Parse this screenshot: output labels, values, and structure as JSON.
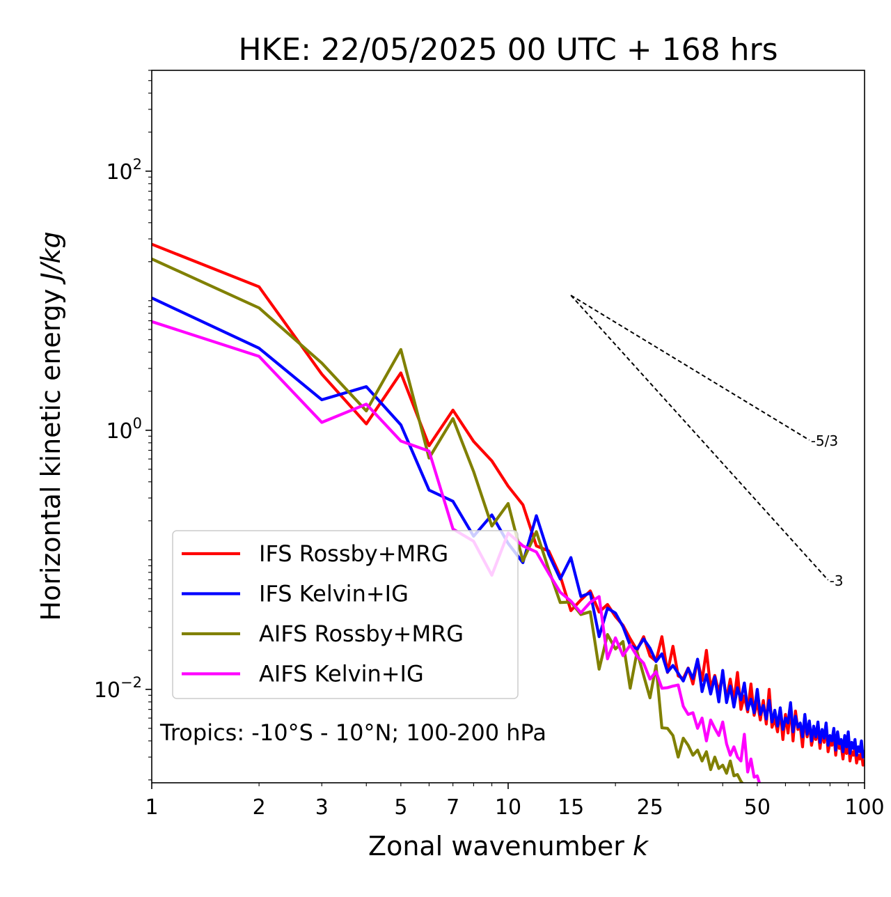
{
  "chart_data": {
    "type": "line",
    "title": "HKE: 22/05/2025 00 UTC + 168 hrs",
    "xlabel_text": "Zonal wavenumber ",
    "xlabel_var": "k",
    "ylabel_text": "Horizontal kinetic energy ",
    "ylabel_unit": "J/kg",
    "xscale": "log",
    "yscale": "log",
    "xlim": [
      1,
      100
    ],
    "ylim": [
      0.0019,
      600
    ],
    "grid": false,
    "legend_position": "lower-left",
    "xticks": [
      1,
      2,
      3,
      5,
      7,
      10,
      15,
      25,
      50,
      100
    ],
    "xtick_labels": [
      "1",
      "2",
      "3",
      "5",
      "7",
      "10",
      "15",
      "25",
      "50",
      "100"
    ],
    "yticks": [
      {
        "value": 100,
        "base": "10",
        "exp": "2"
      },
      {
        "value": 1,
        "base": "10",
        "exp": "0"
      },
      {
        "value": 0.01,
        "base": "10",
        "exp": "−2"
      }
    ],
    "annotation": "Tropics: -10°S - 10°N; 100-200 hPa",
    "reference_slopes": [
      {
        "label": "-5/3",
        "x_start": 15,
        "y_start": 11,
        "x_end": 70,
        "y_end": 0.84
      },
      {
        "label": "-3",
        "x_start": 15,
        "y_start": 11,
        "x_end": 79,
        "y_end": 0.0698
      }
    ],
    "series": [
      {
        "name": "IFS Rossby+MRG",
        "color": "#ff0000",
        "x": [
          1,
          2,
          3,
          4,
          5,
          6,
          7,
          8,
          9,
          10,
          11,
          12,
          13,
          14,
          15,
          16,
          17,
          18,
          19,
          20,
          21,
          22,
          23,
          24,
          25,
          26,
          27,
          28,
          29,
          30,
          31,
          32,
          33,
          34,
          35,
          36,
          37,
          38,
          39,
          40,
          41,
          42,
          43,
          44,
          45,
          46,
          47,
          48,
          49,
          50,
          51,
          52,
          53,
          54,
          55,
          56,
          57,
          58,
          59,
          60,
          61,
          62,
          63,
          64,
          65,
          66,
          67,
          68,
          69,
          70,
          71,
          72,
          73,
          74,
          75,
          76,
          77,
          78,
          79,
          80,
          81,
          82,
          83,
          84,
          85,
          86,
          87,
          88,
          89,
          90,
          91,
          92,
          93,
          94,
          95,
          96,
          97,
          98,
          99,
          100
        ],
        "y": [
          27.3,
          12.8,
          2.71,
          1.12,
          2.77,
          0.76,
          1.43,
          0.82,
          0.58,
          0.37,
          0.266,
          0.128,
          0.117,
          0.075,
          0.0405,
          0.049,
          0.0575,
          0.0395,
          0.0452,
          0.0365,
          0.0312,
          0.0246,
          0.0201,
          0.0255,
          0.0181,
          0.0165,
          0.0255,
          0.0135,
          0.0215,
          0.0127,
          0.0121,
          0.0146,
          0.011,
          0.0169,
          0.0117,
          0.02,
          0.0102,
          0.0128,
          0.0095,
          0.0131,
          0.0084,
          0.012,
          0.0081,
          0.0135,
          0.007,
          0.0089,
          0.0067,
          0.011,
          0.0063,
          0.008,
          0.0058,
          0.0082,
          0.0054,
          0.01,
          0.0051,
          0.0059,
          0.0047,
          0.0069,
          0.0041,
          0.0064,
          0.0046,
          0.0075,
          0.004,
          0.0068,
          0.0049,
          0.0052,
          0.0036,
          0.0062,
          0.0043,
          0.0055,
          0.0037,
          0.0045,
          0.0041,
          0.005,
          0.0035,
          0.0048,
          0.0039,
          0.0054,
          0.0033,
          0.0039,
          0.0037,
          0.0046,
          0.0031,
          0.0043,
          0.0035,
          0.0037,
          0.0029,
          0.0039,
          0.0032,
          0.0044,
          0.0028,
          0.0033,
          0.0031,
          0.0035,
          0.0027,
          0.0031,
          0.0029,
          0.0033,
          0.0026,
          0.00285
        ]
      },
      {
        "name": "IFS Kelvin+IG",
        "color": "#0000ff",
        "x": [
          1,
          2,
          3,
          4,
          5,
          6,
          7,
          8,
          9,
          10,
          11,
          12,
          13,
          14,
          15,
          16,
          17,
          18,
          19,
          20,
          21,
          22,
          23,
          24,
          25,
          26,
          27,
          28,
          29,
          30,
          31,
          32,
          33,
          34,
          35,
          36,
          37,
          38,
          39,
          40,
          41,
          42,
          43,
          44,
          45,
          46,
          47,
          48,
          49,
          50,
          51,
          52,
          53,
          54,
          55,
          56,
          57,
          58,
          59,
          60,
          61,
          62,
          63,
          64,
          65,
          66,
          67,
          68,
          69,
          70,
          71,
          72,
          73,
          74,
          75,
          76,
          77,
          78,
          79,
          80,
          81,
          82,
          83,
          84,
          85,
          86,
          87,
          88,
          89,
          90,
          91,
          92,
          93,
          94,
          95,
          96,
          97,
          98,
          99,
          100
        ],
        "y": [
          10.5,
          4.3,
          1.72,
          2.17,
          1.1,
          0.345,
          0.283,
          0.152,
          0.222,
          0.134,
          0.095,
          0.219,
          0.11,
          0.071,
          0.104,
          0.052,
          0.0555,
          0.0255,
          0.0423,
          0.0388,
          0.0305,
          0.0218,
          0.0205,
          0.0245,
          0.0208,
          0.0164,
          0.0188,
          0.0136,
          0.0153,
          0.0133,
          0.0116,
          0.0145,
          0.0121,
          0.0171,
          0.0096,
          0.013,
          0.0092,
          0.0125,
          0.008,
          0.014,
          0.0079,
          0.0106,
          0.0073,
          0.0103,
          0.0083,
          0.0112,
          0.007,
          0.0084,
          0.0066,
          0.01,
          0.0064,
          0.0075,
          0.0059,
          0.0082,
          0.0056,
          0.0069,
          0.0052,
          0.0072,
          0.0049,
          0.006,
          0.0055,
          0.0079,
          0.0047,
          0.0062,
          0.0051,
          0.0055,
          0.0043,
          0.0064,
          0.0045,
          0.0057,
          0.004,
          0.0052,
          0.0043,
          0.0056,
          0.0039,
          0.0049,
          0.0042,
          0.0055,
          0.0037,
          0.0044,
          0.004,
          0.005,
          0.0034,
          0.0047,
          0.0038,
          0.0041,
          0.0033,
          0.0044,
          0.0036,
          0.0047,
          0.0032,
          0.0039,
          0.0035,
          0.0041,
          0.0031,
          0.0036,
          0.0033,
          0.004,
          0.003,
          0.0034
        ]
      },
      {
        "name": "AIFS Rossby+MRG",
        "color": "#808000",
        "x": [
          1,
          2,
          3,
          4,
          5,
          6,
          7,
          8,
          9,
          10,
          11,
          12,
          13,
          14,
          15,
          16,
          17,
          18,
          19,
          20,
          21,
          22,
          23,
          24,
          25,
          26,
          27,
          28,
          29,
          30,
          31,
          32,
          33,
          34,
          35,
          36,
          37,
          38,
          39,
          40,
          41,
          42,
          43,
          44,
          45,
          46
        ],
        "y": [
          21.0,
          8.8,
          3.3,
          1.41,
          4.2,
          0.61,
          1.23,
          0.48,
          0.182,
          0.272,
          0.098,
          0.165,
          0.084,
          0.0468,
          0.0472,
          0.0378,
          0.0397,
          0.0143,
          0.0265,
          0.0205,
          0.0234,
          0.0102,
          0.0195,
          0.0128,
          0.0086,
          0.0153,
          0.00505,
          0.005,
          0.0044,
          0.003,
          0.0042,
          0.0037,
          0.0031,
          0.0034,
          0.0028,
          0.0033,
          0.0024,
          0.003,
          0.00245,
          0.0026,
          0.00225,
          0.0028,
          0.00215,
          0.0022,
          0.00195,
          0.0018
        ]
      },
      {
        "name": "AIFS Kelvin+IG",
        "color": "#ff00ff",
        "x": [
          1,
          2,
          3,
          4,
          5,
          6,
          7,
          8,
          9,
          10,
          11,
          12,
          13,
          14,
          15,
          16,
          17,
          18,
          19,
          20,
          21,
          22,
          23,
          24,
          25,
          26,
          27,
          28,
          29,
          30,
          31,
          32,
          33,
          34,
          35,
          36,
          37,
          38,
          39,
          40,
          41,
          42,
          43,
          44,
          45,
          46,
          47,
          48,
          49,
          50,
          51
        ],
        "y": [
          6.9,
          3.72,
          1.15,
          1.59,
          0.825,
          0.69,
          0.173,
          0.139,
          0.076,
          0.161,
          0.128,
          0.115,
          0.0785,
          0.0562,
          0.048,
          0.039,
          0.047,
          0.052,
          0.0172,
          0.025,
          0.0182,
          0.022,
          0.018,
          0.0159,
          0.012,
          0.0137,
          0.0102,
          0.0103,
          0.0106,
          0.0108,
          0.0074,
          0.0064,
          0.0066,
          0.005,
          0.006,
          0.004,
          0.0058,
          0.005,
          0.0044,
          0.0056,
          0.0038,
          0.0031,
          0.0036,
          0.003,
          0.0028,
          0.0045,
          0.0023,
          0.0029,
          0.0021,
          0.00215,
          0.0018
        ]
      }
    ]
  }
}
